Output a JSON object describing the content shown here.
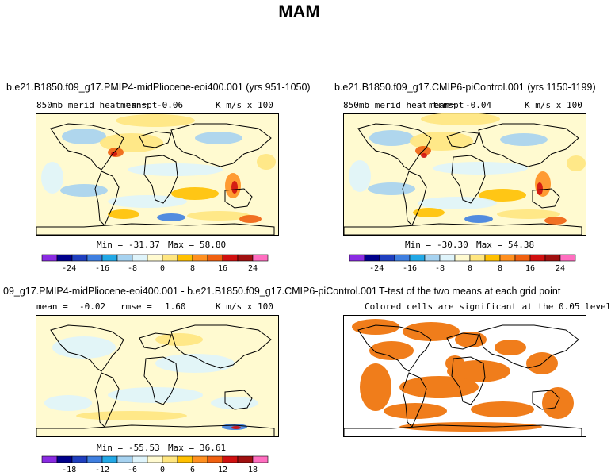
{
  "chart_data": {
    "type": "heatmap",
    "title": "MAM",
    "panels": [
      {
        "id": "pliocene",
        "title": "b.e21.B1850.f09_g17.PMIP4-midPliocene-eoi400.001 (yrs 951-1050)",
        "variable": "850mb merid heat trnspt",
        "mean_label": "mean=",
        "mean_value": "-0.06",
        "units": "K m/s x 100",
        "min_label": "Min =",
        "min_value": "-31.37",
        "max_label": "Max =",
        "max_value": "58.80",
        "colorbar_ticks": [
          "-24",
          "-16",
          "-8",
          "0",
          "8",
          "16",
          "24"
        ]
      },
      {
        "id": "picontrol",
        "title": "b.e21.B1850.f09_g17.CMIP6-piControl.001 (yrs 1150-1199)",
        "variable": "850mb merid heat trnspt",
        "mean_label": "mean=",
        "mean_value": "-0.04",
        "units": "K m/s x 100",
        "min_label": "Min =",
        "min_value": "-30.30",
        "max_label": "Max =",
        "max_value": "54.38",
        "colorbar_ticks": [
          "-24",
          "-16",
          "-8",
          "0",
          "8",
          "16",
          "24"
        ]
      },
      {
        "id": "difference",
        "title": "09_g17.PMIP4-midPliocene-eoi400.001 - b.e21.B1850.f09_g17.CMIP6-piControl.001",
        "mean_label": "mean =",
        "mean_value": "-0.02",
        "rmse_label": "rmse =",
        "rmse_value": "1.60",
        "units": "K m/s x 100",
        "min_label": "Min =",
        "min_value": "-55.53",
        "max_label": "Max =",
        "max_value": "36.61",
        "colorbar_ticks": [
          "-18",
          "-12",
          "-6",
          "0",
          "6",
          "12",
          "18"
        ]
      },
      {
        "id": "ttest",
        "title": "T-test of the two means at each grid point",
        "subtitle": "Colored cells are significant at the 0.05 level"
      }
    ],
    "colorbar_colors": [
      "#8a2be2",
      "#00008b",
      "#1f3fbf",
      "#3f7fe0",
      "#22a8e6",
      "#a6d2f0",
      "#dff4fb",
      "#fffad0",
      "#ffe680",
      "#ffc000",
      "#ff9020",
      "#f06010",
      "#d01010",
      "#a01010",
      "#ff6ec0"
    ],
    "significance_color": "#f07d1b",
    "map_background_color": "#fffad0"
  }
}
